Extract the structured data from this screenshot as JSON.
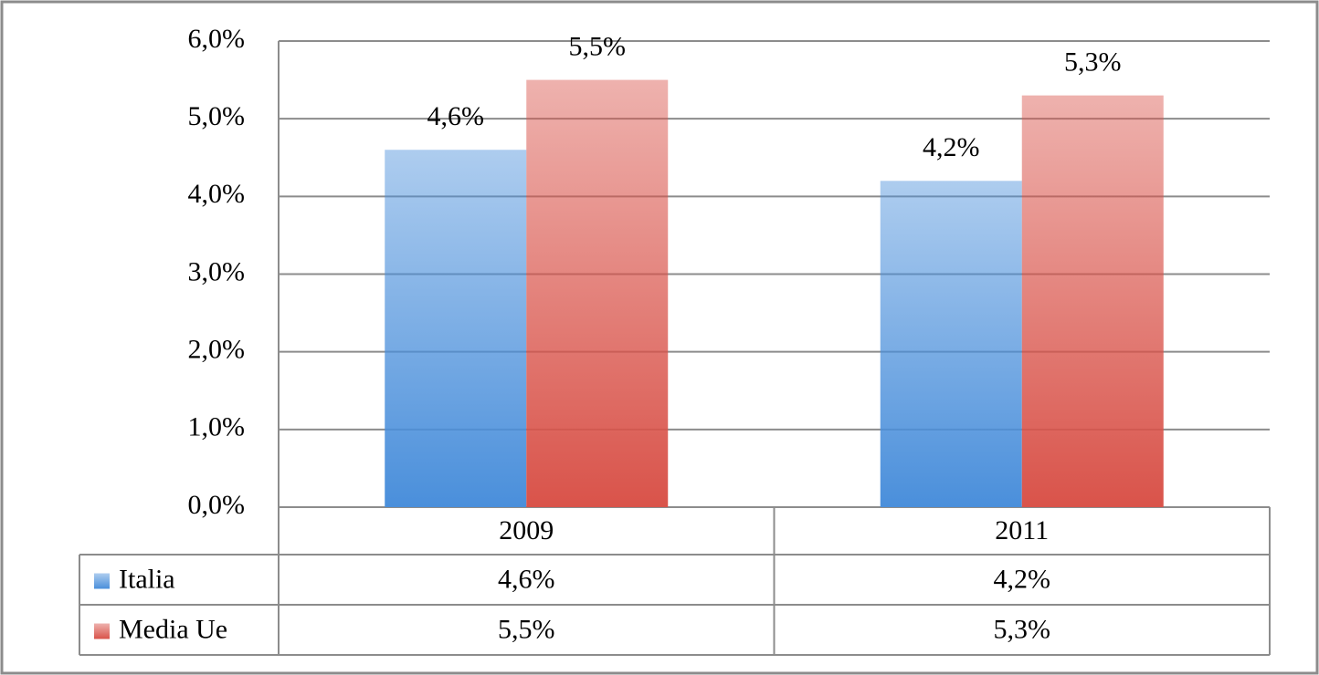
{
  "chart_data": {
    "type": "bar",
    "categories": [
      "2009",
      "2011"
    ],
    "series": [
      {
        "name": "Italia",
        "color": "#4a8fdb",
        "values": [
          4.6,
          4.2
        ],
        "value_labels": [
          "4,6%",
          "4,2%"
        ]
      },
      {
        "name": "Media Ue",
        "color": "#d9534a",
        "values": [
          5.5,
          5.3
        ],
        "value_labels": [
          "5,5%",
          "5,3%"
        ]
      }
    ],
    "ylim": [
      0,
      6
    ],
    "yticks": [
      {
        "value": 0,
        "label": "0,0%"
      },
      {
        "value": 1,
        "label": "1,0%"
      },
      {
        "value": 2,
        "label": "2,0%"
      },
      {
        "value": 3,
        "label": "3,0%"
      },
      {
        "value": 4,
        "label": "4,0%"
      },
      {
        "value": 5,
        "label": "5,0%"
      },
      {
        "value": 6,
        "label": "6,0%"
      }
    ],
    "grid": true,
    "data_table": true
  }
}
